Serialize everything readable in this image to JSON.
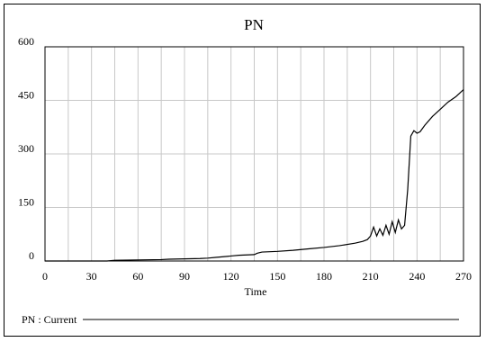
{
  "chart_data": {
    "type": "line",
    "title": "PN",
    "xlabel": "Time",
    "ylabel": "",
    "xlim": [
      0,
      270
    ],
    "ylim": [
      0,
      600
    ],
    "x_ticks": [
      0,
      30,
      60,
      90,
      120,
      150,
      180,
      210,
      240,
      270
    ],
    "y_ticks": [
      0,
      150,
      300,
      450,
      600
    ],
    "grid": true,
    "x_grid_step": 15,
    "legend": "bottom-left",
    "legend_label": "PN : Current",
    "series": [
      {
        "name": "PN : Current",
        "color": "#000000",
        "x": [
          0,
          40,
          45,
          60,
          75,
          80,
          90,
          100,
          105,
          110,
          115,
          120,
          125,
          130,
          135,
          137,
          140,
          145,
          150,
          160,
          170,
          180,
          190,
          200,
          205,
          208,
          210,
          212,
          214,
          216,
          218,
          220,
          222,
          224,
          226,
          228,
          230,
          232,
          234,
          236,
          238,
          240,
          242,
          245,
          250,
          255,
          260,
          265,
          270
        ],
        "y": [
          0,
          0,
          2,
          3,
          4,
          5,
          6,
          7,
          8,
          10,
          12,
          14,
          16,
          17,
          18,
          22,
          25,
          26,
          27,
          30,
          34,
          38,
          43,
          50,
          55,
          60,
          70,
          95,
          70,
          90,
          72,
          100,
          75,
          110,
          80,
          115,
          90,
          100,
          200,
          350,
          365,
          358,
          362,
          380,
          405,
          425,
          445,
          460,
          480
        ]
      }
    ]
  }
}
